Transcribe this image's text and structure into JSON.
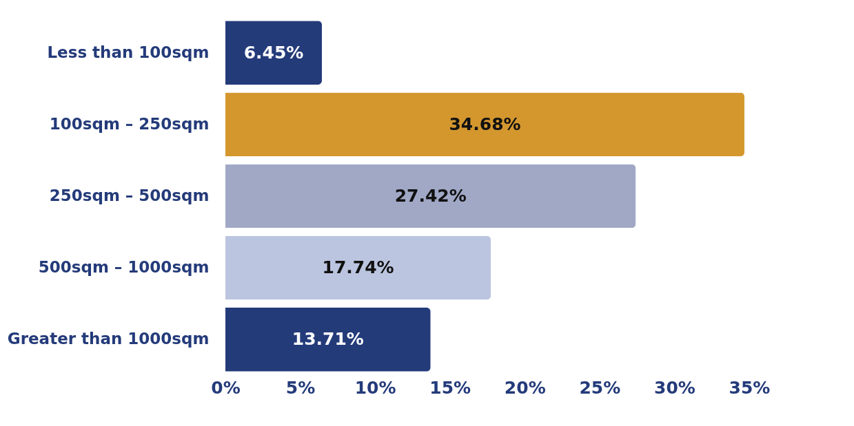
{
  "chart_data": {
    "type": "bar",
    "orientation": "horizontal",
    "categories": [
      "Less than 100sqm",
      "100sqm – 250sqm",
      "250sqm – 500sqm",
      "500sqm – 1000sqm",
      "Greater than 1000sqm"
    ],
    "values": [
      6.45,
      34.68,
      27.42,
      17.74,
      13.71
    ],
    "colors": [
      "#243b7a",
      "#d4972e",
      "#a0a8c6",
      "#bcc5e0",
      "#243b7a"
    ],
    "value_labels": [
      "6.45%",
      "34.68%",
      "27.42%",
      "17.74%",
      "13.71%"
    ],
    "xlim": [
      0,
      35
    ],
    "xticks": [
      {
        "value": 0,
        "label": "0%"
      },
      {
        "value": 5,
        "label": "5%"
      },
      {
        "value": 10,
        "label": "10%"
      },
      {
        "value": 15,
        "label": "15%"
      },
      {
        "value": 20,
        "label": "20%"
      },
      {
        "value": 25,
        "label": "25%"
      },
      {
        "value": 30,
        "label": "30%"
      },
      {
        "value": 35,
        "label": "35%"
      }
    ],
    "grid": false
  }
}
